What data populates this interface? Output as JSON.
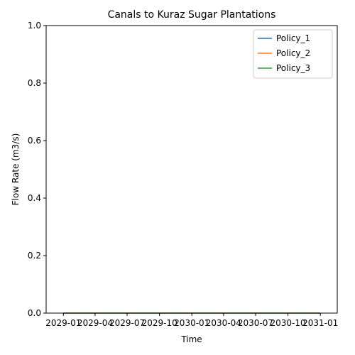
{
  "chart_data": {
    "type": "line",
    "title": "Canals to Kuraz Sugar Plantations",
    "xlabel": "Time",
    "ylabel": "Flow Rate (m3/s)",
    "xlim": [
      "2028-11-13",
      "2031-02-18"
    ],
    "ylim": [
      0,
      1
    ],
    "x_ticks": [
      "2029-01",
      "2029-04",
      "2029-07",
      "2029-10",
      "2030-01",
      "2030-04",
      "2030-07",
      "2030-10",
      "2031-01"
    ],
    "y_ticks": [
      "0.0",
      "0.2",
      "0.4",
      "0.6",
      "0.8",
      "1.0"
    ],
    "legend_position": "top-right",
    "grid": false,
    "series": [
      {
        "name": "Policy_1",
        "color": "#1f77b4",
        "x": [
          "2029-01-01",
          "2030-12-31"
        ],
        "values": [
          0,
          0
        ]
      },
      {
        "name": " Policy_2",
        "color": "#ff7f0e",
        "x": [
          "2029-01-01",
          "2030-12-31"
        ],
        "values": [
          0,
          0
        ]
      },
      {
        "name": " Policy_3",
        "color": "#2ca02c",
        "x": [
          "2029-01-01",
          "2030-12-31"
        ],
        "values": [
          0,
          0
        ]
      }
    ]
  }
}
